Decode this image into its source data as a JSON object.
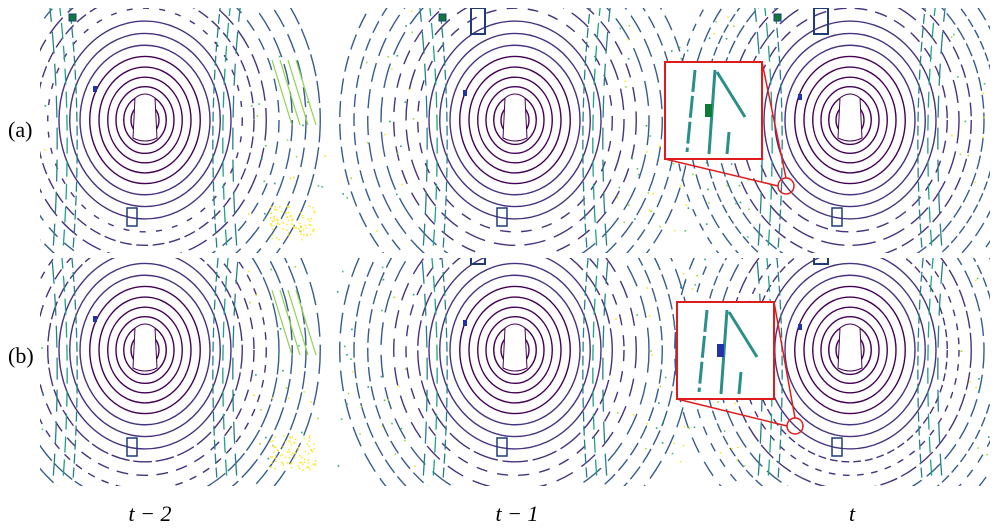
{
  "rows": [
    {
      "label": "(a)"
    },
    {
      "label": "(b)"
    }
  ],
  "columns": [
    {
      "label": "t − 2"
    },
    {
      "label": "t − 1"
    },
    {
      "label": "t"
    }
  ]
}
